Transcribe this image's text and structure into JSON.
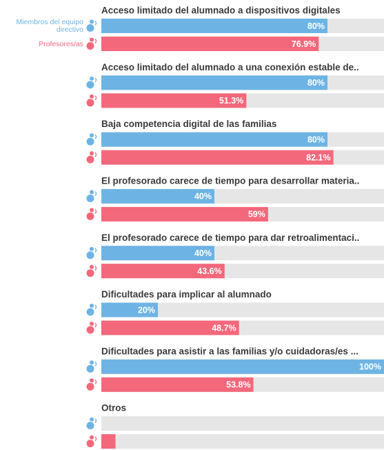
{
  "chart_data": {
    "type": "bar",
    "orientation": "horizontal",
    "categories": [
      "Acceso limitado del alumnado a dispositivos digitales",
      "Acceso limitado del alumnado a una conexión estable de..",
      "Baja competencia digital de las familias",
      "El profesorado carece de tiempo para desarrollar materia..",
      "El profesorado carece de tiempo para dar retroalimentaci..",
      "Dificultades para implicar al alumnado",
      "Dificultades para asistir a las familias y/o cuidadoras/es ...",
      "Otros"
    ],
    "series": [
      {
        "name": "Miembros del equipo directivo",
        "color": "#6db4e4",
        "values": [
          80,
          80,
          80,
          40,
          40,
          20,
          100,
          0
        ],
        "value_labels": [
          "80%",
          "80%",
          "80%",
          "40%",
          "40%",
          "20%",
          "100%",
          null
        ]
      },
      {
        "name": "Profesores/as",
        "color": "#f3687b",
        "values": [
          76.9,
          51.3,
          82.1,
          59,
          43.6,
          48.7,
          53.8,
          5
        ],
        "value_labels": [
          "76.9%",
          "51.3%",
          "82.1%",
          "59%",
          "43.6%",
          "48.7%",
          "53.8%",
          null
        ]
      }
    ],
    "xlim": [
      0,
      100
    ]
  }
}
